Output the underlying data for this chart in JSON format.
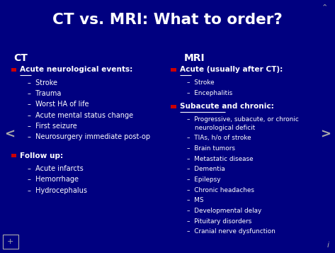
{
  "title": "CT vs. MRI: What to order?",
  "bg_color": "#000080",
  "title_color": "#ffffff",
  "text_color": "#ffffff",
  "bullet_color": "#cc0000",
  "nav_color": "#aaaaaa",
  "ct_header": "CT",
  "mri_header": "MRI",
  "ct_sections": [
    {
      "label": "Acute neurological events:",
      "underline_word": "Acute",
      "bold": true,
      "items": [
        "Stroke",
        "Trauma",
        "Worst HA of life",
        "Acute mental status change",
        "First seizure",
        "Neurosurgery immediate post-op"
      ]
    },
    {
      "label": "Follow up:",
      "underline_word": null,
      "bold": true,
      "items": [
        "Acute infarcts",
        "Hemorrhage",
        "Hydrocephalus"
      ]
    }
  ],
  "mri_sections": [
    {
      "label": "Acute (usually after CT):",
      "underline_word": "Acute",
      "bold": true,
      "items": [
        "Stroke",
        "Encephalitis"
      ]
    },
    {
      "label": "Subacute and chronic:",
      "underline_word": "Subacute and chronic",
      "bold": true,
      "items": [
        "Progressive, subacute, or chronic neurological deficit",
        "TIAs, h/o of stroke",
        "Brain tumors",
        "Metastatic disease",
        "Dementia",
        "Epilepsy",
        "Chronic headaches",
        "MS",
        "Developmental delay",
        "Pituitary disorders",
        "Cranial nerve dysfunction"
      ]
    }
  ]
}
